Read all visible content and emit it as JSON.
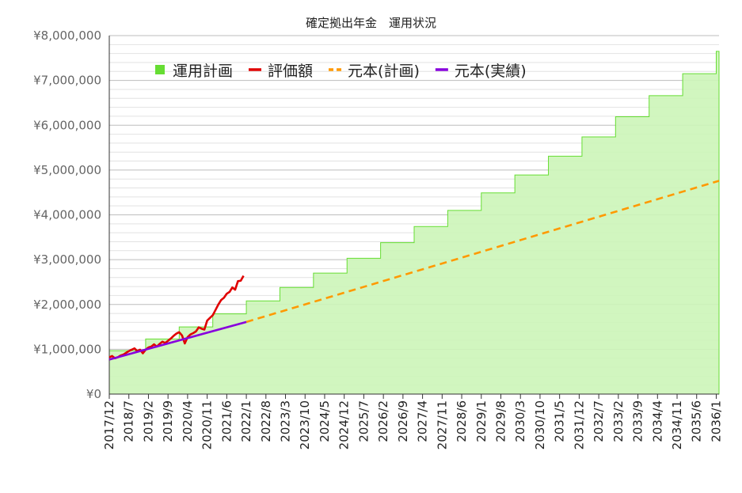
{
  "chart_data": {
    "type": "line",
    "title": "確定拠出年金　運用状況",
    "legend_position": "top-left",
    "grid": true,
    "y_axis": {
      "min": 0,
      "max": 8000000,
      "tick_step": 1000000,
      "tick_labels": [
        "¥0",
        "¥1,000,000",
        "¥2,000,000",
        "¥3,000,000",
        "¥4,000,000",
        "¥5,000,000",
        "¥6,000,000",
        "¥7,000,000",
        "¥8,000,000"
      ]
    },
    "x_axis": {
      "start": "2017-12",
      "end": "2036-02",
      "tick_labels": [
        "2017/12",
        "2018/7",
        "2019/2",
        "2019/9",
        "2020/4",
        "2020/11",
        "2021/6",
        "2022/1",
        "2022/8",
        "2023/3",
        "2023/10",
        "2024/5",
        "2024/12",
        "2025/7",
        "2026/2",
        "2026/9",
        "2027/4",
        "2027/11",
        "2028/6",
        "2029/1",
        "2029/8",
        "2030/3",
        "2030/10",
        "2031/5",
        "2031/12",
        "2032/7",
        "2033/2",
        "2033/9",
        "2034/4",
        "2034/11",
        "2035/6",
        "2036/1"
      ]
    },
    "series": [
      {
        "name": "運用計画",
        "kind": "step-area",
        "color": "#66dd33",
        "fill": "#ccf5b8",
        "points": [
          {
            "x": "2017-12",
            "y": 970000
          },
          {
            "x": "2019-01",
            "y": 1230000
          },
          {
            "x": "2020-01",
            "y": 1500000
          },
          {
            "x": "2021-01",
            "y": 1790000
          },
          {
            "x": "2022-01",
            "y": 2080000
          },
          {
            "x": "2023-01",
            "y": 2380000
          },
          {
            "x": "2024-01",
            "y": 2700000
          },
          {
            "x": "2025-01",
            "y": 3030000
          },
          {
            "x": "2026-01",
            "y": 3380000
          },
          {
            "x": "2027-01",
            "y": 3740000
          },
          {
            "x": "2028-01",
            "y": 4100000
          },
          {
            "x": "2029-01",
            "y": 4490000
          },
          {
            "x": "2030-01",
            "y": 4890000
          },
          {
            "x": "2031-01",
            "y": 5310000
          },
          {
            "x": "2032-01",
            "y": 5740000
          },
          {
            "x": "2033-01",
            "y": 6190000
          },
          {
            "x": "2034-01",
            "y": 6660000
          },
          {
            "x": "2035-01",
            "y": 7150000
          },
          {
            "x": "2036-01",
            "y": 7650000
          },
          {
            "x": "2036-02",
            "y": 7650000
          }
        ]
      },
      {
        "name": "評価額",
        "kind": "line",
        "color": "#e00000",
        "points": [
          {
            "x": "2017-12",
            "y": 820000
          },
          {
            "x": "2018-01",
            "y": 850000
          },
          {
            "x": "2018-02",
            "y": 800000
          },
          {
            "x": "2018-03",
            "y": 820000
          },
          {
            "x": "2018-04",
            "y": 860000
          },
          {
            "x": "2018-05",
            "y": 880000
          },
          {
            "x": "2018-06",
            "y": 920000
          },
          {
            "x": "2018-07",
            "y": 960000
          },
          {
            "x": "2018-08",
            "y": 990000
          },
          {
            "x": "2018-09",
            "y": 1020000
          },
          {
            "x": "2018-10",
            "y": 960000
          },
          {
            "x": "2018-11",
            "y": 990000
          },
          {
            "x": "2018-12",
            "y": 910000
          },
          {
            "x": "2019-01",
            "y": 990000
          },
          {
            "x": "2019-02",
            "y": 1040000
          },
          {
            "x": "2019-03",
            "y": 1060000
          },
          {
            "x": "2019-04",
            "y": 1110000
          },
          {
            "x": "2019-05",
            "y": 1060000
          },
          {
            "x": "2019-06",
            "y": 1120000
          },
          {
            "x": "2019-07",
            "y": 1170000
          },
          {
            "x": "2019-08",
            "y": 1140000
          },
          {
            "x": "2019-09",
            "y": 1190000
          },
          {
            "x": "2019-10",
            "y": 1240000
          },
          {
            "x": "2019-11",
            "y": 1300000
          },
          {
            "x": "2019-12",
            "y": 1350000
          },
          {
            "x": "2020-01",
            "y": 1380000
          },
          {
            "x": "2020-02",
            "y": 1310000
          },
          {
            "x": "2020-03",
            "y": 1130000
          },
          {
            "x": "2020-04",
            "y": 1270000
          },
          {
            "x": "2020-05",
            "y": 1330000
          },
          {
            "x": "2020-06",
            "y": 1360000
          },
          {
            "x": "2020-07",
            "y": 1400000
          },
          {
            "x": "2020-08",
            "y": 1490000
          },
          {
            "x": "2020-09",
            "y": 1460000
          },
          {
            "x": "2020-10",
            "y": 1440000
          },
          {
            "x": "2020-11",
            "y": 1640000
          },
          {
            "x": "2020-12",
            "y": 1700000
          },
          {
            "x": "2021-01",
            "y": 1760000
          },
          {
            "x": "2021-02",
            "y": 1880000
          },
          {
            "x": "2021-03",
            "y": 2000000
          },
          {
            "x": "2021-04",
            "y": 2100000
          },
          {
            "x": "2021-05",
            "y": 2150000
          },
          {
            "x": "2021-06",
            "y": 2240000
          },
          {
            "x": "2021-07",
            "y": 2280000
          },
          {
            "x": "2021-08",
            "y": 2380000
          },
          {
            "x": "2021-09",
            "y": 2330000
          },
          {
            "x": "2021-10",
            "y": 2520000
          },
          {
            "x": "2021-11",
            "y": 2530000
          },
          {
            "x": "2021-12",
            "y": 2640000
          }
        ]
      },
      {
        "name": "元本(計画)",
        "kind": "dashed-line",
        "color": "#ff9900",
        "points": [
          {
            "x": "2022-01",
            "y": 1610000
          },
          {
            "x": "2036-02",
            "y": 4760000
          }
        ]
      },
      {
        "name": "元本(実績)",
        "kind": "line",
        "color": "#8800dd",
        "points": [
          {
            "x": "2017-12",
            "y": 770000
          },
          {
            "x": "2022-01",
            "y": 1610000
          }
        ]
      }
    ]
  }
}
